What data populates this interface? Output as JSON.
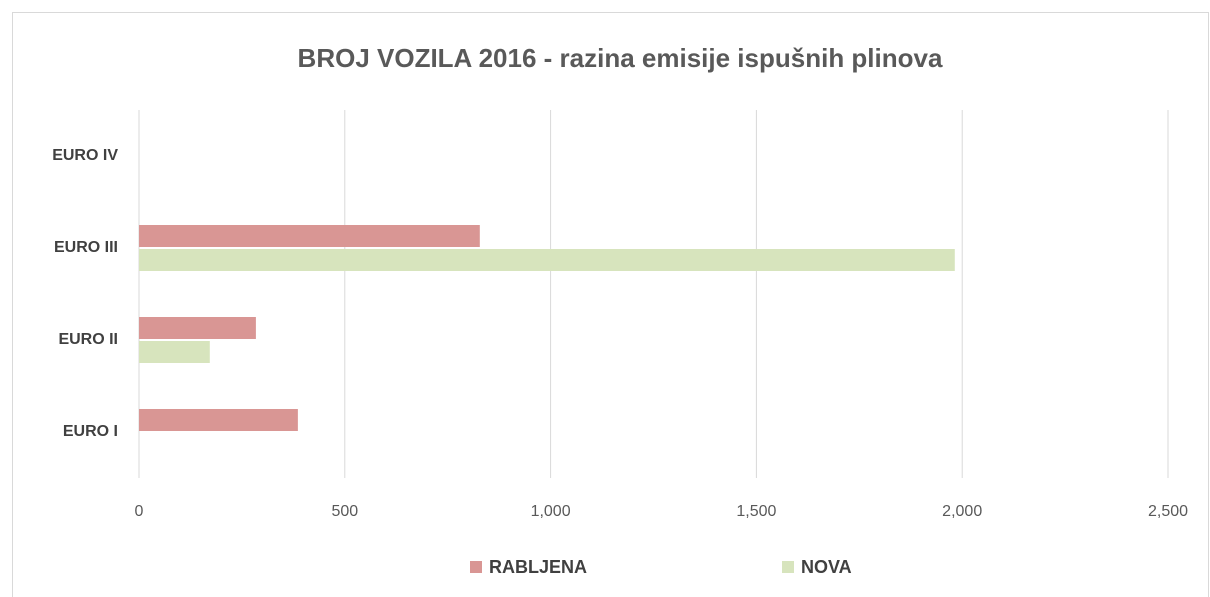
{
  "chart_data": {
    "type": "barh",
    "title": "BROJ VOZILA 2016 - razina emisije ispušnih plinova",
    "categories": [
      "EURO I",
      "EURO II",
      "EURO III",
      "EURO IV"
    ],
    "series": [
      {
        "name": "RABLJENA",
        "color": "#d99694",
        "values": [
          386,
          284,
          828,
          null
        ]
      },
      {
        "name": "NOVA",
        "color": "#d7e4bd",
        "values": [
          null,
          172,
          1982,
          null
        ]
      }
    ],
    "xlim": [
      0,
      2500
    ],
    "xticks": [
      0,
      500,
      {
        "value": 1000,
        "label": "1,000"
      },
      {
        "value": 1500,
        "label": "1,500"
      },
      {
        "value": 2000,
        "label": "2,000"
      },
      {
        "value": 2500,
        "label": "2,500"
      }
    ],
    "grid": true,
    "legend": "bottom"
  }
}
